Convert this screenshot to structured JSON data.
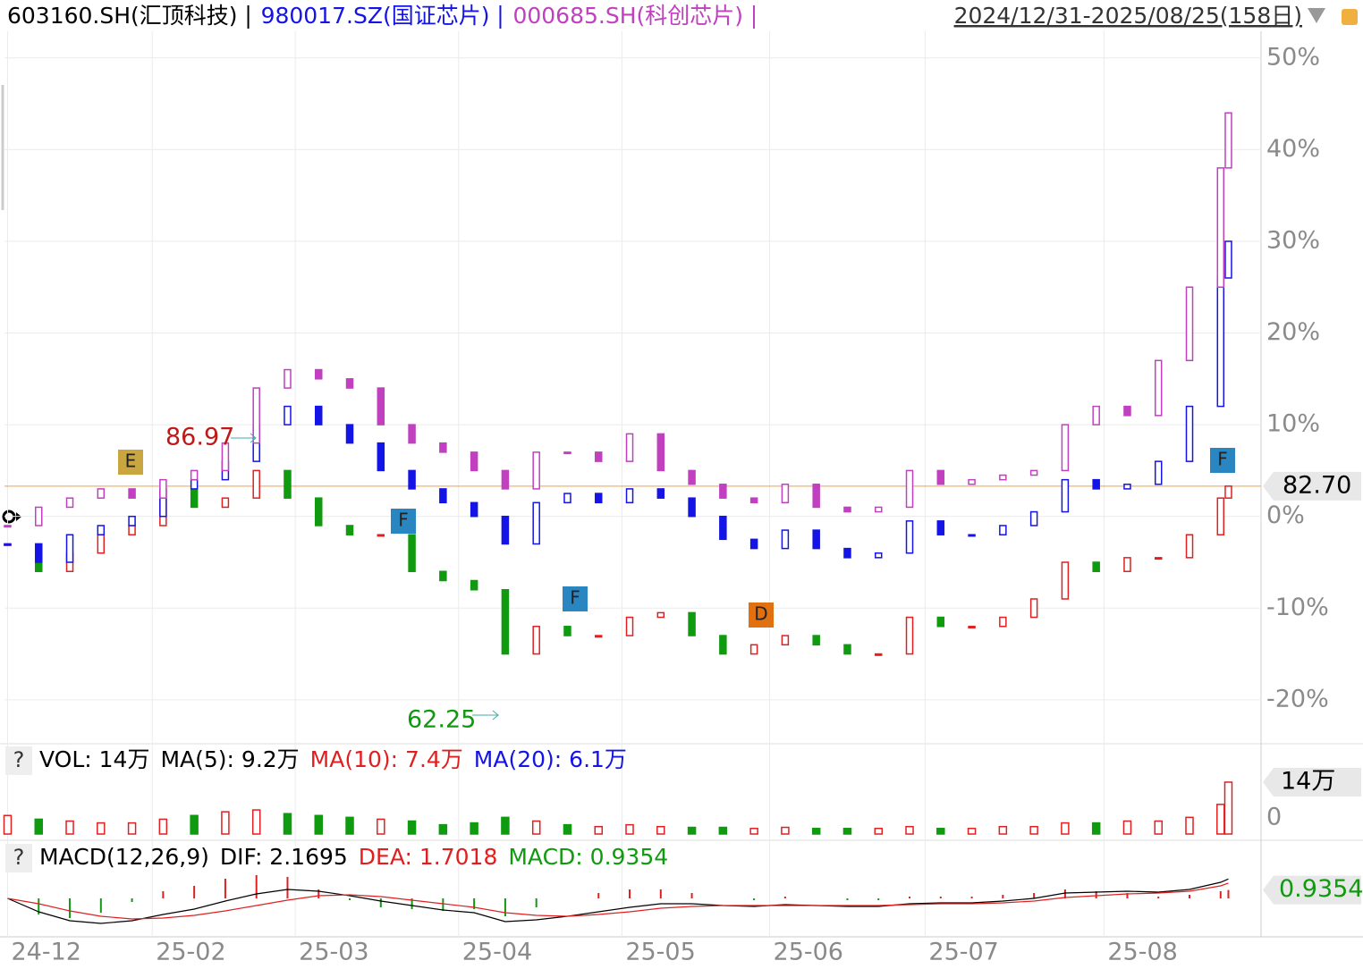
{
  "header": {
    "range": "2024/12/31-2025/08/25(158日)"
  },
  "chart_data": [
    {
      "type": "candlestick",
      "x": [
        0,
        4,
        8,
        12,
        16,
        20,
        24,
        28,
        32,
        36,
        40,
        44,
        48,
        52,
        56,
        60,
        64,
        68,
        72,
        76,
        80,
        84,
        88,
        92,
        96,
        100,
        104,
        108,
        112,
        116,
        120,
        124,
        128,
        132,
        136,
        140,
        144,
        148,
        152,
        156,
        157
      ],
      "xlim": [
        -0.4,
        161.2
      ],
      "xticks": [
        {
          "value": 0,
          "label": "24-12"
        },
        {
          "value": 18.6,
          "label": "25-02"
        },
        {
          "value": 37,
          "label": "25-03"
        },
        {
          "value": 58,
          "label": "25-04"
        },
        {
          "value": 79,
          "label": "25-05"
        },
        {
          "value": 98,
          "label": "25-06"
        },
        {
          "value": 118,
          "label": "25-07"
        },
        {
          "value": 141,
          "label": "25-08"
        }
      ],
      "ylim": [
        -24.4,
        52.9
      ],
      "yticks": [
        {
          "value": 50,
          "label": "50%"
        },
        {
          "value": 40,
          "label": "40%"
        },
        {
          "value": 30,
          "label": "30%"
        },
        {
          "value": 20,
          "label": "20%"
        },
        {
          "value": 10,
          "label": "10%"
        },
        {
          "value": 0,
          "label": "0%"
        },
        {
          "value": -10,
          "label": "-10%"
        },
        {
          "value": -20,
          "label": "-20%"
        }
      ],
      "grid": true,
      "series": [
        {
          "name": "603160.SH(汇顶科技)",
          "up_color": "#e02020",
          "down_color": "#109a10",
          "values": [
            -3,
            -6,
            -4,
            -2,
            -1,
            3,
            1,
            2,
            5,
            2,
            -1,
            -2,
            -2,
            -6,
            -7,
            -8,
            -15,
            -12,
            -13,
            -13,
            -11,
            -10.5,
            -13,
            -15,
            -14,
            -13,
            -14,
            -15,
            -15,
            -11,
            -12,
            -12,
            -11,
            -9,
            -5,
            -6,
            -4.5,
            -4.5,
            -2,
            2,
            3.3
          ]
        },
        {
          "name": "980017.SZ(国证芯片)",
          "color": "#1414e6",
          "values": [
            -3,
            -5,
            -2,
            -1,
            0,
            3,
            4,
            6,
            10,
            12,
            10,
            8,
            5,
            3,
            1.5,
            0,
            -3,
            1.5,
            2.5,
            1.5,
            3,
            2,
            0,
            -2.5,
            -3.5,
            -1.5,
            -3.5,
            -4.5,
            -4,
            -0.5,
            -2,
            -2,
            -1,
            0.5,
            4,
            3,
            3.5,
            6,
            12,
            26,
            30
          ]
        },
        {
          "name": "000685.SH(科创芯片)",
          "color": "#c040c0",
          "values": [
            -1,
            1,
            2,
            3,
            2,
            4,
            5,
            8,
            14,
            16,
            15,
            14,
            10,
            8,
            7,
            5,
            3,
            7,
            7,
            6,
            9,
            5,
            3.5,
            2,
            1.5,
            3.5,
            1,
            0.5,
            1,
            5,
            3.5,
            4,
            4.5,
            5,
            10,
            12,
            11,
            17,
            25,
            38,
            44
          ]
        }
      ],
      "last_price": {
        "value": 82.7,
        "label": "82.70"
      },
      "line_color": "#f0a040",
      "high_label": 86.97,
      "low_label": 62.25,
      "markers": [
        {
          "text": "E",
          "color": "#c9a640"
        },
        {
          "text": "F",
          "color": "#2a86c0"
        },
        {
          "text": "F",
          "color": "#2a86c0"
        },
        {
          "text": "D",
          "color": "#e07010"
        },
        {
          "text": "F",
          "color": "#2a86c0"
        }
      ]
    },
    {
      "type": "bar",
      "help": "?",
      "title": "VOL: 14万",
      "stats": [
        "MA(5): 9.2万",
        "MA(10): 7.4万",
        "MA(20): 6.1万"
      ],
      "stat_colors": [
        "#000000",
        "#e02020",
        "#1414e6"
      ],
      "ylim": [
        0,
        15.2
      ],
      "yticks": [
        0
      ],
      "last_label": {
        "value": 14,
        "label": "14万"
      },
      "values": [
        5,
        4,
        3.5,
        3,
        3,
        4,
        5,
        6,
        6.5,
        5.5,
        5,
        4.5,
        4,
        3.5,
        2.5,
        3,
        4.5,
        3.5,
        2.5,
        2,
        2.5,
        2,
        1.8,
        1.8,
        1.5,
        1.8,
        1.5,
        1.5,
        1.5,
        2,
        1.5,
        1.5,
        2,
        2,
        3,
        3,
        3.5,
        3.5,
        4.5,
        8,
        14
      ]
    },
    {
      "type": "macd",
      "help": "?",
      "title": "MACD(12,26,9)",
      "stats": [
        "DIF: 2.1695",
        "DEA: 1.7018",
        "MACD: 0.9354"
      ],
      "stat_colors": [
        "#000000",
        "#e02020",
        "#109a10"
      ],
      "ylim": [
        -4,
        3
      ],
      "last_label": 0.9354,
      "dif_color": "#000000",
      "dea_color": "#e02020",
      "dif": [
        0,
        -1.5,
        -2.5,
        -2.8,
        -2.5,
        -1.8,
        -1.2,
        -0.3,
        0.5,
        1,
        0.8,
        0.3,
        -0.3,
        -0.8,
        -1.3,
        -1.6,
        -2.6,
        -2.4,
        -2,
        -1.5,
        -1,
        -0.6,
        -0.6,
        -0.8,
        -0.9,
        -0.7,
        -0.8,
        -0.9,
        -0.9,
        -0.6,
        -0.5,
        -0.5,
        -0.3,
        0,
        0.6,
        0.7,
        0.8,
        0.7,
        1,
        1.8,
        2.1695
      ],
      "dea": [
        0,
        -0.6,
        -1.4,
        -2,
        -2.3,
        -2.2,
        -1.9,
        -1.4,
        -0.8,
        -0.2,
        0.3,
        0.4,
        0.2,
        -0.2,
        -0.6,
        -1,
        -1.6,
        -1.9,
        -2,
        -1.8,
        -1.5,
        -1.1,
        -0.9,
        -0.8,
        -0.8,
        -0.8,
        -0.8,
        -0.8,
        -0.8,
        -0.7,
        -0.6,
        -0.6,
        -0.5,
        -0.3,
        0.1,
        0.3,
        0.5,
        0.6,
        0.8,
        1.4,
        1.7018
      ],
      "values": [
        0,
        -1.8,
        -2.2,
        -1.6,
        -0.4,
        0.8,
        1.4,
        2.2,
        2.6,
        2.4,
        1,
        -0.2,
        -1,
        -1.2,
        -1.4,
        -1.2,
        -2,
        -1,
        0,
        0.6,
        1,
        1,
        0.6,
        0,
        -0.2,
        0.2,
        0,
        -0.2,
        -0.2,
        0.2,
        0.2,
        0.2,
        0.4,
        0.6,
        1,
        0.8,
        0.6,
        0.2,
        0.4,
        0.8,
        0.9354
      ]
    }
  ]
}
